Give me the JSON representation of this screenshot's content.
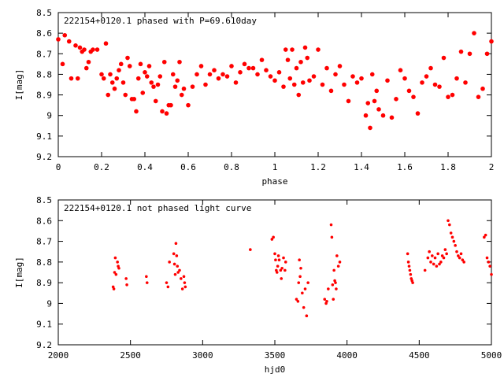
{
  "chart_data": [
    {
      "type": "scatter",
      "title": "222154+0120.1 phased with P=69.610day",
      "xlabel": "phase",
      "ylabel": "I[mag]",
      "xlim": [
        0,
        2
      ],
      "ylim": [
        8.5,
        9.2
      ],
      "y_inverted": true,
      "x_ticks": [
        "0",
        "0.2",
        "0.4",
        "0.6",
        "0.8",
        "1",
        "1.2",
        "1.4",
        "1.6",
        "1.8",
        "2"
      ],
      "y_ticks": [
        "8.5",
        "8.6",
        "8.7",
        "8.8",
        "8.9",
        "9",
        "9.1",
        "9.2"
      ],
      "marker": "filled-circle",
      "color": "#ff0000",
      "series": [
        {
          "x": [
            0.0,
            0.02,
            0.03,
            0.05,
            0.06,
            0.08,
            0.09,
            0.1,
            0.11,
            0.12,
            0.13,
            0.14,
            0.15,
            0.16,
            0.18,
            0.2,
            0.21,
            0.22,
            0.23,
            0.24,
            0.25,
            0.26,
            0.27,
            0.28,
            0.29,
            0.3,
            0.31,
            0.32,
            0.33,
            0.34,
            0.35,
            0.36,
            0.37,
            0.38,
            0.39,
            0.4,
            0.41,
            0.42,
            0.43,
            0.44,
            0.45,
            0.46,
            0.47,
            0.48,
            0.49,
            0.5,
            0.51,
            0.52,
            0.53,
            0.54,
            0.55,
            0.56,
            0.57,
            0.58,
            0.6,
            0.62,
            0.64,
            0.66,
            0.68,
            0.7,
            0.72,
            0.74,
            0.76,
            0.78,
            0.8,
            0.82,
            0.84,
            0.86,
            0.88,
            0.9,
            0.92,
            0.94,
            0.96,
            0.98,
            1.0,
            1.02,
            1.04,
            1.05,
            1.06,
            1.07,
            1.08,
            1.09,
            1.1,
            1.11,
            1.12,
            1.13,
            1.14,
            1.15,
            1.16,
            1.18,
            1.2,
            1.22,
            1.24,
            1.26,
            1.28,
            1.3,
            1.32,
            1.34,
            1.36,
            1.38,
            1.4,
            1.42,
            1.43,
            1.44,
            1.45,
            1.46,
            1.47,
            1.48,
            1.5,
            1.52,
            1.54,
            1.56,
            1.58,
            1.6,
            1.62,
            1.64,
            1.66,
            1.68,
            1.7,
            1.72,
            1.74,
            1.76,
            1.78,
            1.8,
            1.82,
            1.84,
            1.86,
            1.88,
            1.9,
            1.92,
            1.94,
            1.96,
            1.98,
            2.0
          ],
          "y": [
            8.63,
            8.75,
            8.61,
            8.64,
            8.82,
            8.66,
            8.82,
            8.67,
            8.69,
            8.68,
            8.77,
            8.74,
            8.69,
            8.68,
            8.68,
            8.8,
            8.82,
            8.65,
            8.9,
            8.8,
            8.84,
            8.87,
            8.82,
            8.78,
            8.75,
            8.84,
            8.9,
            8.72,
            8.76,
            8.92,
            8.92,
            8.98,
            8.82,
            8.75,
            8.89,
            8.79,
            8.81,
            8.76,
            8.84,
            8.86,
            8.93,
            8.85,
            8.81,
            8.98,
            8.74,
            8.99,
            8.95,
            8.95,
            8.8,
            8.86,
            8.83,
            8.74,
            8.9,
            8.87,
            8.95,
            8.86,
            8.8,
            8.76,
            8.85,
            8.8,
            8.78,
            8.82,
            8.8,
            8.81,
            8.76,
            8.84,
            8.79,
            8.75,
            8.77,
            8.77,
            8.8,
            8.73,
            8.78,
            8.81,
            8.83,
            8.79,
            8.86,
            8.68,
            8.73,
            8.82,
            8.68,
            8.85,
            8.77,
            8.9,
            8.74,
            8.84,
            8.67,
            8.72,
            8.83,
            8.81,
            8.68,
            8.85,
            8.77,
            8.88,
            8.8,
            8.76,
            8.85,
            8.93,
            8.81,
            8.84,
            8.82,
            9.0,
            8.94,
            9.06,
            8.8,
            8.93,
            8.88,
            8.97,
            9.0,
            8.83,
            9.01,
            8.92,
            8.78,
            8.82,
            8.88,
            8.91,
            8.99,
            8.84,
            8.81,
            8.77,
            8.85,
            8.86,
            8.72,
            8.91,
            8.9,
            8.82,
            8.69,
            8.84,
            8.7,
            8.6,
            8.91,
            8.87,
            8.7,
            8.64
          ]
        }
      ]
    },
    {
      "type": "scatter",
      "title": "222154+0120.1 not phased light curve",
      "xlabel": "hjd0",
      "ylabel": "I[mag]",
      "xlim": [
        2000,
        5000
      ],
      "ylim": [
        8.5,
        9.2
      ],
      "y_inverted": true,
      "x_ticks": [
        "2000",
        "2500",
        "3000",
        "3500",
        "4000",
        "4500",
        "5000"
      ],
      "y_ticks": [
        "8.5",
        "8.6",
        "8.7",
        "8.8",
        "8.9",
        "9",
        "9.1",
        "9.2"
      ],
      "marker": "filled-circle",
      "color": "#ff0000",
      "series": [
        {
          "x": [
            2380,
            2385,
            2390,
            2395,
            2400,
            2410,
            2415,
            2420,
            2470,
            2475,
            2610,
            2615,
            2750,
            2760,
            2770,
            2800,
            2805,
            2810,
            2815,
            2820,
            2825,
            2830,
            2840,
            2850,
            2860,
            2870,
            2875,
            2880,
            3330,
            3480,
            3490,
            3500,
            3505,
            3510,
            3515,
            3520,
            3525,
            3530,
            3540,
            3545,
            3550,
            3560,
            3570,
            3575,
            3650,
            3660,
            3665,
            3670,
            3675,
            3680,
            3690,
            3700,
            3710,
            3720,
            3730,
            3845,
            3855,
            3860,
            3870,
            3890,
            3895,
            3900,
            3905,
            3910,
            3915,
            3920,
            3925,
            3930,
            3940,
            3950,
            4420,
            4425,
            4430,
            4435,
            4440,
            4445,
            4450,
            4455,
            4540,
            4560,
            4570,
            4580,
            4590,
            4600,
            4610,
            4620,
            4630,
            4640,
            4650,
            4660,
            4670,
            4680,
            4690,
            4700,
            4710,
            4720,
            4730,
            4740,
            4750,
            4760,
            4770,
            4780,
            4790,
            4800,
            4810,
            4950,
            4960,
            4970,
            4980,
            4990,
            5000
          ],
          "y": [
            8.92,
            8.93,
            8.85,
            8.78,
            8.86,
            8.8,
            8.82,
            8.83,
            8.88,
            8.91,
            8.87,
            8.9,
            8.9,
            8.92,
            8.8,
            8.76,
            8.81,
            8.86,
            8.71,
            8.77,
            8.82,
            8.85,
            8.84,
            8.88,
            8.93,
            8.87,
            8.9,
            8.92,
            8.74,
            8.69,
            8.68,
            8.76,
            8.79,
            8.84,
            8.85,
            8.82,
            8.77,
            8.79,
            8.84,
            8.88,
            8.83,
            8.78,
            8.84,
            8.8,
            8.98,
            8.99,
            8.9,
            8.79,
            8.87,
            8.83,
            8.95,
            9.02,
            8.93,
            9.06,
            8.9,
            8.98,
            9.0,
            8.99,
            8.93,
            8.62,
            8.68,
            8.91,
            8.98,
            8.84,
            8.89,
            8.9,
            8.93,
            8.77,
            8.82,
            8.8,
            8.76,
            8.8,
            8.82,
            8.84,
            8.86,
            8.88,
            8.89,
            8.9,
            8.84,
            8.78,
            8.75,
            8.8,
            8.77,
            8.81,
            8.78,
            8.82,
            8.76,
            8.81,
            8.8,
            8.77,
            8.78,
            8.74,
            8.76,
            8.6,
            8.62,
            8.66,
            8.68,
            8.7,
            8.72,
            8.75,
            8.77,
            8.78,
            8.76,
            8.79,
            8.8,
            8.68,
            8.67,
            8.78,
            8.8,
            8.82,
            8.86
          ]
        }
      ]
    }
  ]
}
